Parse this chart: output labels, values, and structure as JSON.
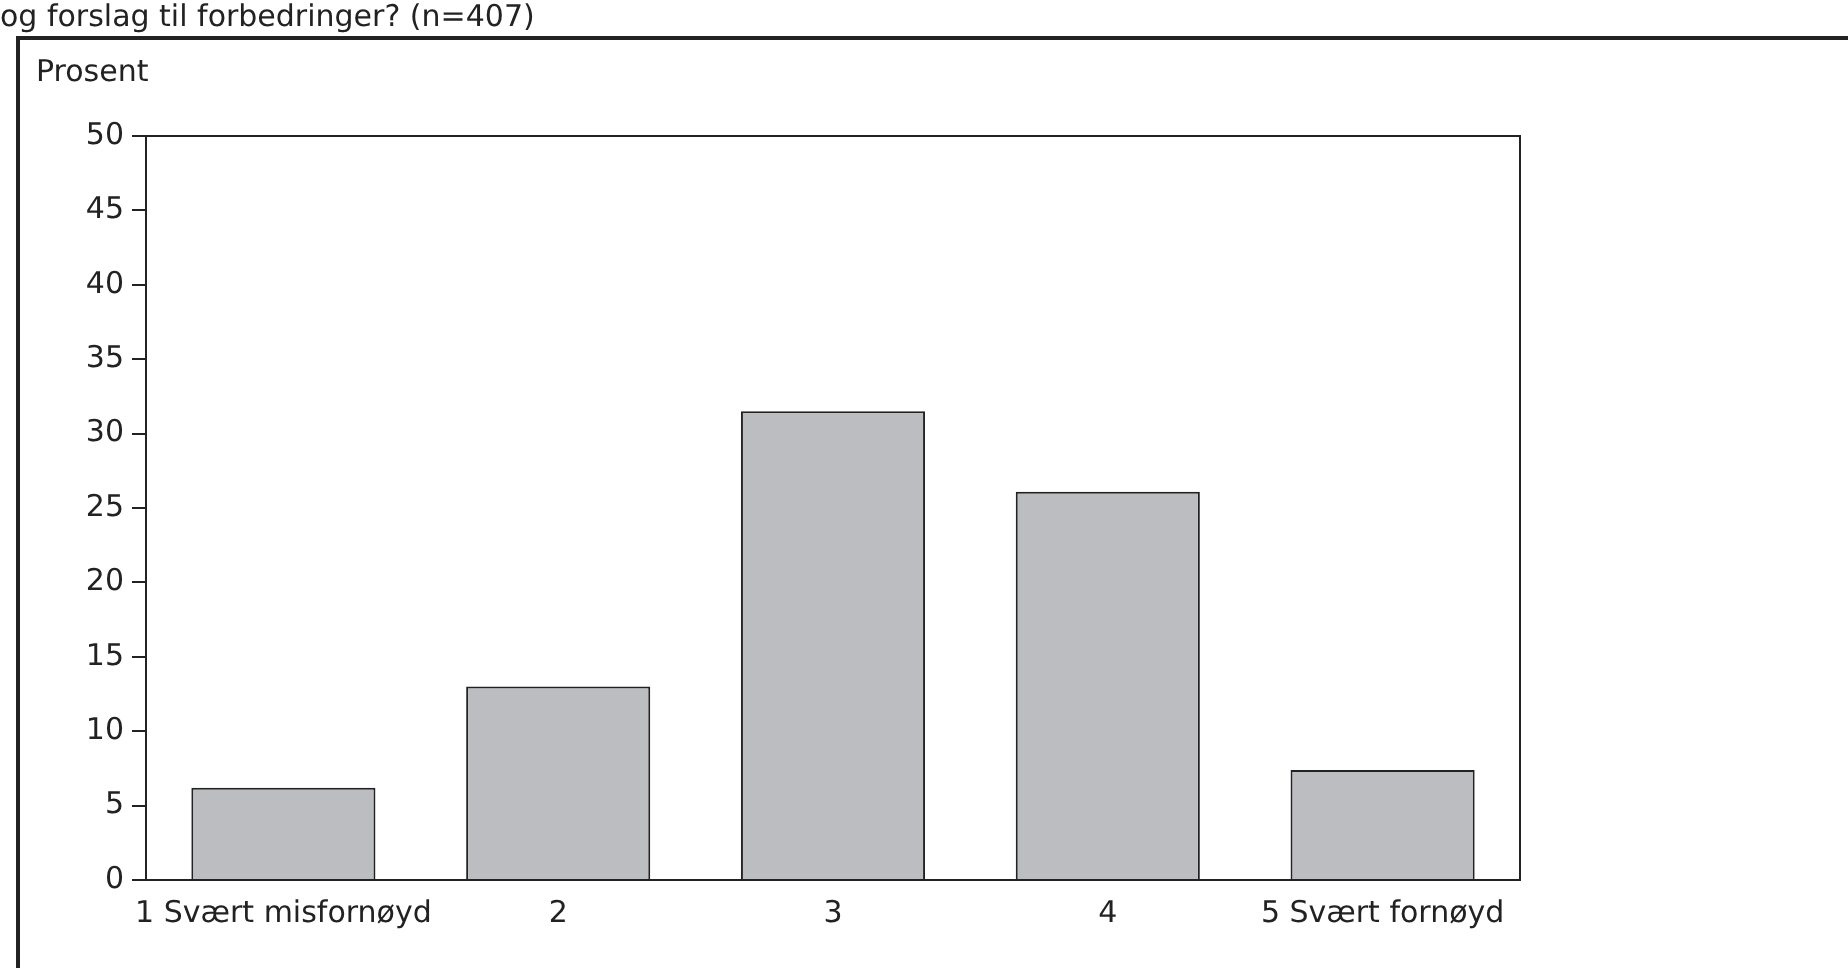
{
  "chart_data": {
    "type": "bar",
    "title": "og forslag til forbedringer? (n=407)",
    "ylabel": "Prosent",
    "categories": [
      "1 Svært misfornøyd",
      "2",
      "3",
      "4",
      "5 Svært fornøyd"
    ],
    "values": [
      6.2,
      13,
      31.5,
      26.1,
      7.4
    ],
    "color": "#bcbdc1",
    "ylim": [
      0,
      50
    ],
    "yticks": [
      0,
      5,
      10,
      15,
      20,
      25,
      30,
      35,
      40,
      45,
      50
    ],
    "grid": false,
    "legend": false
  }
}
